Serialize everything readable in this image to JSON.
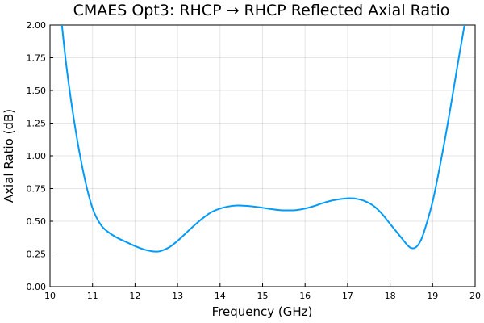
{
  "chart_data": {
    "type": "line",
    "title": "CMAES Opt3: RHCP → RHCP Reflected Axial Ratio",
    "xlabel": "Frequency (GHz)",
    "ylabel": "Axial Ratio (dB)",
    "xlim": [
      10,
      20
    ],
    "ylim": [
      0,
      2
    ],
    "xticks": [
      "10",
      "11",
      "12",
      "13",
      "14",
      "15",
      "16",
      "17",
      "18",
      "19",
      "20"
    ],
    "yticks": [
      "0.00",
      "0.25",
      "0.50",
      "0.75",
      "1.00",
      "1.25",
      "1.50",
      "1.75",
      "2.00"
    ],
    "grid": true,
    "legend": "none",
    "series": [
      {
        "color": "#009AFA",
        "x": [
          10.28,
          10.4,
          10.6,
          10.8,
          11.0,
          11.2,
          11.4,
          11.6,
          11.8,
          12.0,
          12.2,
          12.4,
          12.5,
          12.6,
          12.8,
          13.0,
          13.2,
          13.4,
          13.6,
          13.8,
          14.0,
          14.2,
          14.4,
          14.6,
          14.8,
          15.0,
          15.2,
          15.4,
          15.6,
          15.8,
          16.0,
          16.2,
          16.4,
          16.6,
          16.8,
          17.0,
          17.1,
          17.2,
          17.4,
          17.6,
          17.8,
          18.0,
          18.2,
          18.4,
          18.5,
          18.6,
          18.7,
          18.8,
          19.0,
          19.2,
          19.4,
          19.6,
          19.75
        ],
        "y": [
          2.0,
          1.65,
          1.2,
          0.85,
          0.6,
          0.47,
          0.41,
          0.37,
          0.34,
          0.31,
          0.285,
          0.27,
          0.268,
          0.272,
          0.3,
          0.35,
          0.41,
          0.47,
          0.525,
          0.57,
          0.597,
          0.613,
          0.62,
          0.618,
          0.612,
          0.603,
          0.593,
          0.585,
          0.583,
          0.586,
          0.597,
          0.615,
          0.637,
          0.656,
          0.668,
          0.675,
          0.675,
          0.672,
          0.655,
          0.62,
          0.56,
          0.48,
          0.4,
          0.32,
          0.295,
          0.3,
          0.34,
          0.42,
          0.65,
          0.97,
          1.33,
          1.72,
          2.0
        ]
      }
    ]
  }
}
